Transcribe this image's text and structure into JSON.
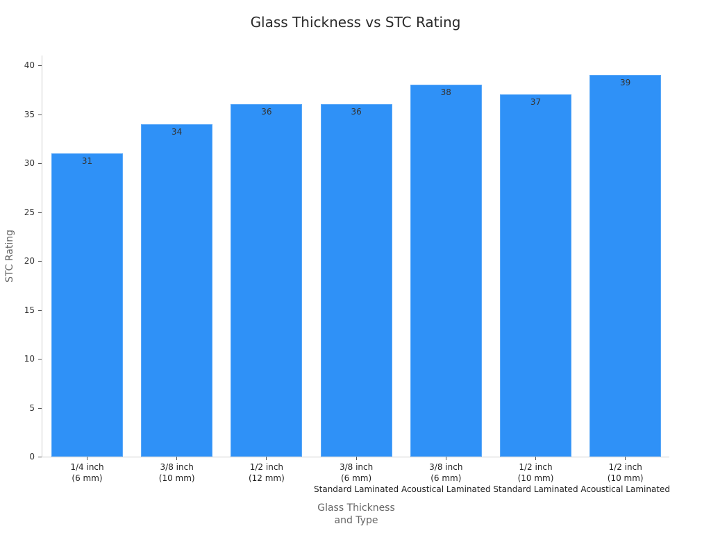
{
  "chart_data": {
    "type": "bar",
    "title": "Glass Thickness vs STC Rating",
    "xlabel": "Glass Thickness and Type",
    "xlabel_lines": [
      "Glass Thickness",
      "and Type"
    ],
    "ylabel": "STC Rating",
    "ylim": [
      0,
      41
    ],
    "yticks": [
      0,
      5,
      10,
      15,
      20,
      25,
      30,
      35,
      40
    ],
    "grid": false,
    "legend": null,
    "bar_color": "#2f91f7",
    "categories": [
      "1/4 inch (6 mm)",
      "3/8 inch (10 mm)",
      "1/2 inch (12 mm)",
      "3/8 inch (6 mm) Standard Laminated",
      "3/8 inch (6 mm) Acoustical Laminated",
      "1/2 inch (10 mm) Standard Laminated",
      "1/2 inch (10 mm) Acoustical Laminated"
    ],
    "category_lines": [
      [
        "1/4 inch",
        "(6 mm)"
      ],
      [
        "3/8 inch",
        "(10 mm)"
      ],
      [
        "1/2 inch",
        "(12 mm)"
      ],
      [
        "3/8 inch",
        "(6 mm)",
        "Standard Laminated"
      ],
      [
        "3/8 inch",
        "(6 mm)",
        "Acoustical Laminated"
      ],
      [
        "1/2 inch",
        "(10 mm)",
        "Standard Laminated"
      ],
      [
        "1/2 inch",
        "(10 mm)",
        "Acoustical Laminated"
      ]
    ],
    "values": [
      31,
      34,
      36,
      36,
      38,
      37,
      39
    ]
  }
}
